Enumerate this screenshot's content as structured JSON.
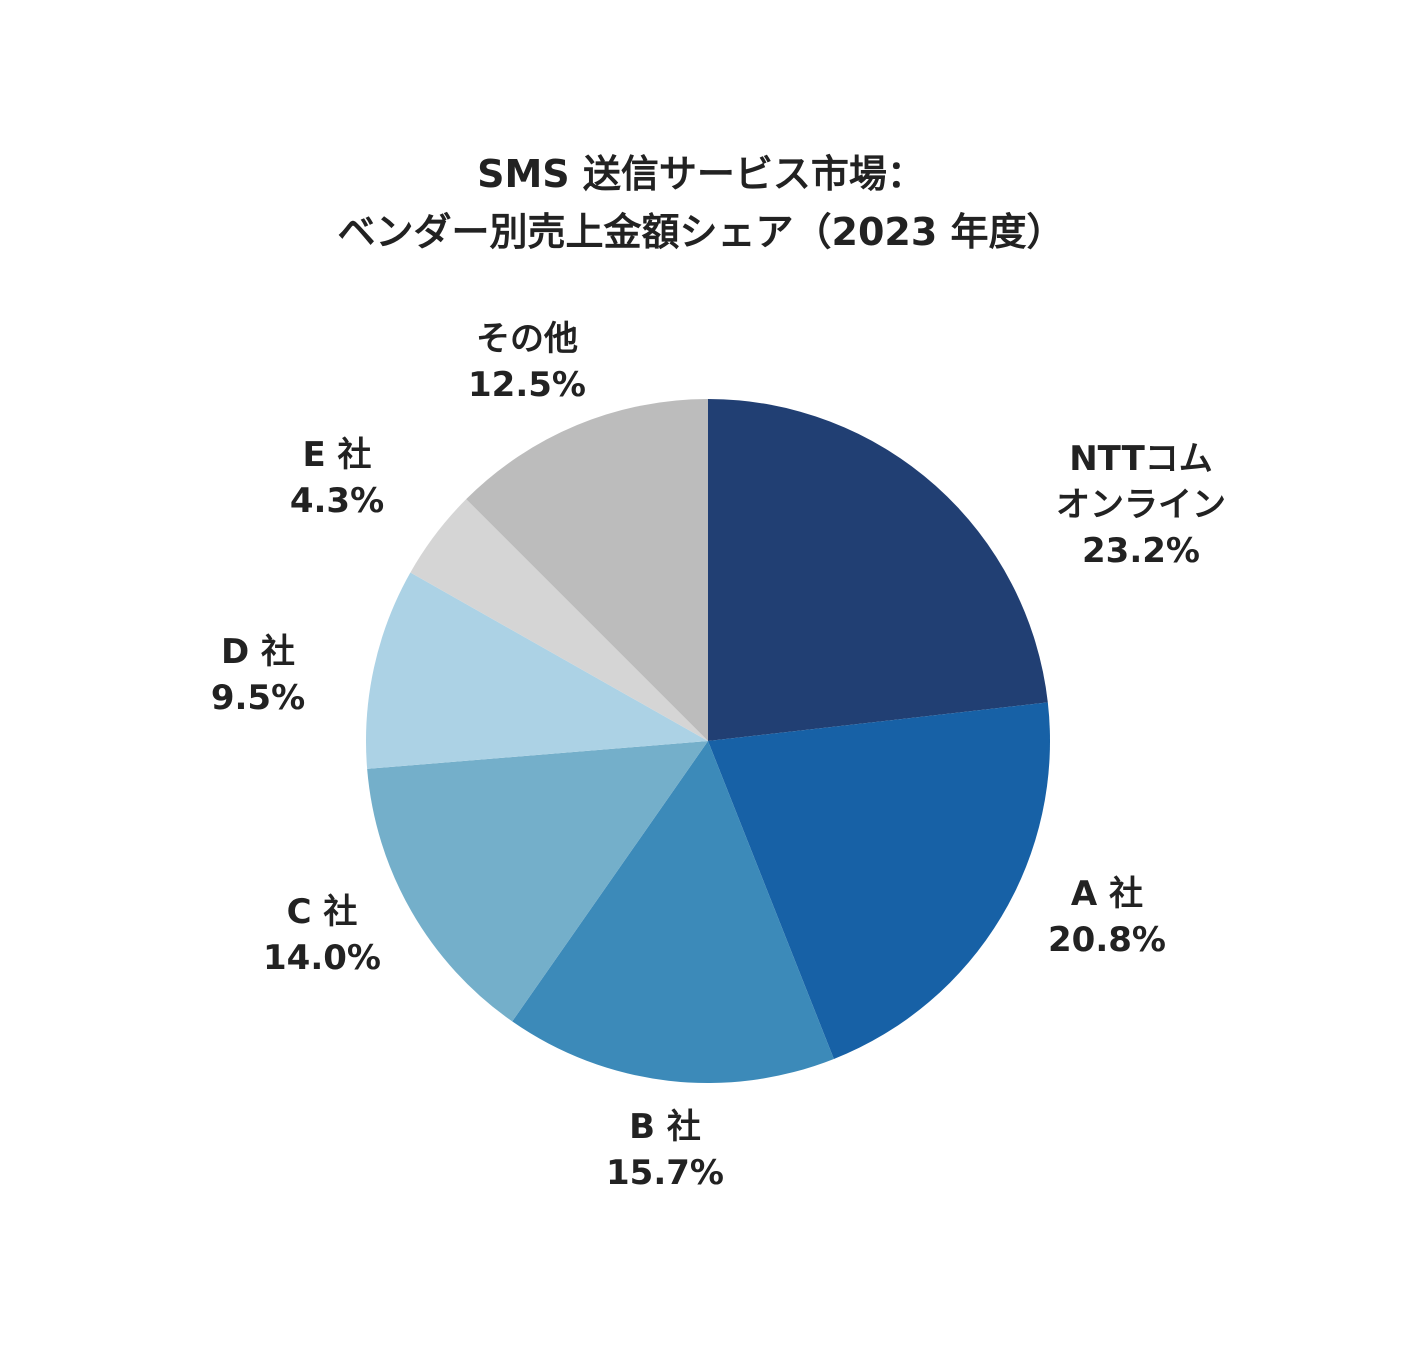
{
  "chart_data": {
    "type": "pie",
    "title_lines": [
      "SMS 送信サービス市場：",
      "ベンダー別売上金額シェア（2023 年度）"
    ],
    "slices": [
      {
        "label_lines": [
          "NTTコム",
          "オンライン"
        ],
        "value": 23.2,
        "value_label": "23.2%",
        "color": "#213f73"
      },
      {
        "label_lines": [
          "A 社"
        ],
        "value": 20.8,
        "value_label": "20.8%",
        "color": "#1761a6"
      },
      {
        "label_lines": [
          "B 社"
        ],
        "value": 15.7,
        "value_label": "15.7%",
        "color": "#3c8ab9"
      },
      {
        "label_lines": [
          "C 社"
        ],
        "value": 14.0,
        "value_label": "14.0%",
        "color": "#74afca"
      },
      {
        "label_lines": [
          "D 社"
        ],
        "value": 9.5,
        "value_label": "9.5%",
        "color": "#acd2e5"
      },
      {
        "label_lines": [
          "E 社"
        ],
        "value": 4.3,
        "value_label": "4.3%",
        "color": "#d5d5d5"
      },
      {
        "label_lines": [
          "その他"
        ],
        "value": 12.5,
        "value_label": "12.5%",
        "color": "#bcbcbc"
      }
    ],
    "start_angle": "12 o'clock",
    "direction": "clockwise",
    "labels": "outside slices"
  }
}
